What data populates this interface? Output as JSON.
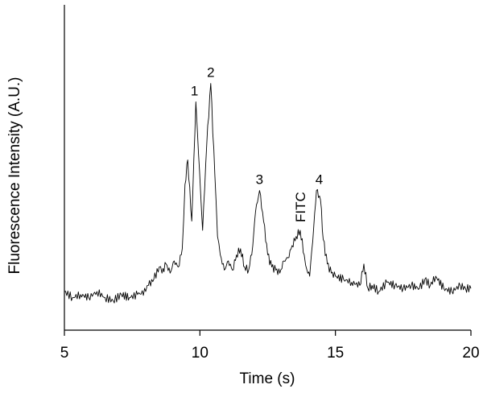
{
  "chart_data": {
    "type": "line",
    "title": "",
    "xlabel": "Time (s)",
    "ylabel": "Fluorescence Intensity (A.U.)",
    "xlim": [
      5,
      20
    ],
    "ylim": [
      0,
      100
    ],
    "xticks": [
      5,
      10,
      15,
      20
    ],
    "grid": false,
    "legend": "none",
    "series": [
      {
        "x": [
          5.0,
          5.3,
          5.6,
          5.9,
          6.2,
          6.5,
          6.8,
          7.1,
          7.4,
          7.7,
          8.0,
          8.1,
          8.3,
          8.5,
          8.6,
          8.75,
          8.9,
          9.05,
          9.2,
          9.35,
          9.45,
          9.55,
          9.7,
          9.85,
          9.95,
          10.1,
          10.25,
          10.4,
          10.55,
          10.65,
          10.75,
          10.9,
          11.05,
          11.2,
          11.35,
          11.5,
          11.65,
          11.8,
          11.95,
          12.05,
          12.2,
          12.35,
          12.5,
          12.65,
          12.8,
          12.95,
          13.1,
          13.25,
          13.4,
          13.55,
          13.7,
          13.85,
          13.95,
          14.05,
          14.2,
          14.3,
          14.45,
          14.55,
          14.7,
          14.85,
          15.0,
          15.3,
          15.6,
          15.9,
          16.05,
          16.2,
          16.35,
          16.6,
          16.9,
          17.2,
          17.5,
          17.8,
          18.1,
          18.3,
          18.5,
          18.7,
          19.0,
          19.3,
          19.6,
          19.8,
          20.0
        ],
        "y": [
          10,
          8,
          9,
          8,
          10,
          8,
          7,
          9,
          8,
          9,
          10,
          12,
          14,
          18,
          16,
          19,
          16,
          20,
          18,
          24,
          45,
          53,
          33,
          72,
          55,
          30,
          58,
          78,
          48,
          28,
          22,
          17,
          20,
          17,
          22,
          24,
          18,
          17,
          25,
          36,
          43,
          33,
          22,
          18,
          17,
          16,
          20,
          21,
          25,
          28,
          30,
          22,
          17,
          15,
          31,
          43,
          40,
          27,
          19,
          16,
          15,
          14,
          13,
          12,
          19,
          11,
          12,
          10,
          13,
          12,
          11,
          12,
          11,
          14,
          12,
          15,
          11,
          10,
          12,
          11,
          11
        ]
      }
    ],
    "annotations": [
      {
        "text": "1",
        "x": 9.8,
        "y": 72
      },
      {
        "text": "2",
        "x": 10.4,
        "y": 78
      },
      {
        "text": "3",
        "x": 12.2,
        "y": 43
      },
      {
        "text": "FITC",
        "x": 13.7,
        "y": 30
      },
      {
        "text": "4",
        "x": 14.4,
        "y": 43
      }
    ]
  }
}
